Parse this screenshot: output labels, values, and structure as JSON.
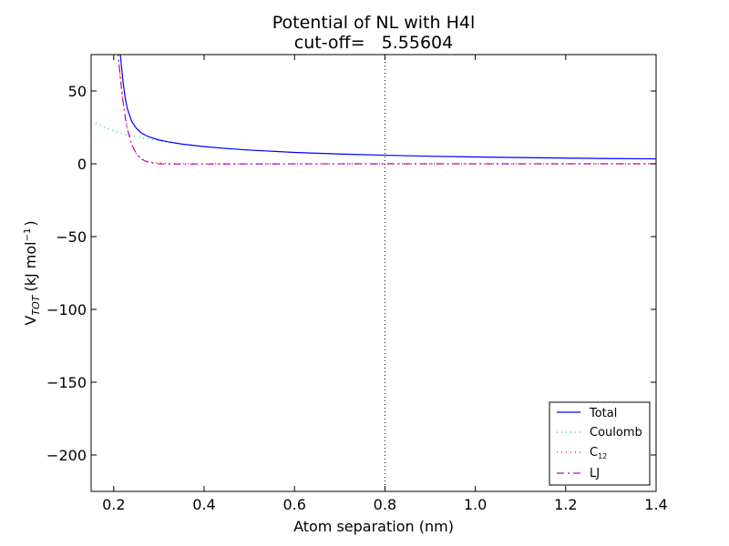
{
  "chart_data": {
    "type": "line",
    "title": "Potential of NL with H4l",
    "subtitle": "cut-off=   5.55604",
    "xlabel": "Atom separation (nm)",
    "ylabel": "V",
    "ylabel_subscript": "TOT",
    "ylabel_units": "(kJ mol",
    "ylabel_units_exp": "−1",
    "ylabel_units_close": ")",
    "xlim": [
      0.15,
      1.4
    ],
    "ylim": [
      -225,
      75
    ],
    "xticks": [
      0.2,
      0.4,
      0.6,
      0.8,
      1.0,
      1.2,
      1.4
    ],
    "xtick_labels": [
      "0.2",
      "0.4",
      "0.6",
      "0.8",
      "1.0",
      "1.2",
      "1.4"
    ],
    "yticks": [
      50,
      0,
      -50,
      -100,
      -150,
      -200
    ],
    "ytick_labels": [
      "50",
      "0",
      "−50",
      "−100",
      "−150",
      "−200"
    ],
    "grid": false,
    "legend_position": "bottom-right",
    "cutoff_line_x": 0.8,
    "series": [
      {
        "name": "Total",
        "color": "#0000ff",
        "style": "solid",
        "x": [
          0.21,
          0.215,
          0.22,
          0.225,
          0.23,
          0.24,
          0.25,
          0.26,
          0.27,
          0.28,
          0.3,
          0.32,
          0.35,
          0.4,
          0.45,
          0.5,
          0.6,
          0.7,
          0.8,
          0.9,
          1.0,
          1.1,
          1.2,
          1.3,
          1.4
        ],
        "y": [
          90,
          74,
          58,
          46,
          38,
          29,
          24.5,
          21.5,
          19.6,
          18.3,
          16.4,
          15.1,
          13.6,
          11.8,
          10.5,
          9.4,
          7.8,
          6.7,
          5.9,
          5.2,
          4.7,
          4.3,
          3.9,
          3.6,
          3.4
        ]
      },
      {
        "name": "Coulomb",
        "color": "#00bfbf",
        "style": "dotted",
        "x": [
          0.16,
          0.18,
          0.2,
          0.22,
          0.25,
          0.28,
          0.3,
          0.35,
          0.4,
          0.5,
          0.6,
          0.7,
          0.8,
          0.9,
          1.0,
          1.1,
          1.2,
          1.3,
          1.4
        ],
        "y": [
          28,
          25,
          22.5,
          20.5,
          18.5,
          16.8,
          15.8,
          13.6,
          11.8,
          9.4,
          7.8,
          6.7,
          5.9,
          5.2,
          4.7,
          4.3,
          3.9,
          3.6,
          3.4
        ]
      },
      {
        "name": "C",
        "name_subscript": "12",
        "color": "#ff0000",
        "style": "dotted",
        "x": [
          0.205,
          0.21,
          0.215,
          0.22,
          0.225,
          0.23,
          0.24,
          0.25,
          0.26,
          0.27,
          0.28,
          0.3,
          0.35,
          0.4,
          0.5,
          0.6,
          0.8,
          1.0,
          1.2,
          1.4
        ],
        "y": [
          90,
          74,
          58,
          44,
          33,
          24,
          13,
          7,
          3.8,
          2.2,
          1.3,
          0.5,
          0.1,
          0.03,
          0.0,
          0.0,
          0.0,
          0.0,
          0.0,
          0.0
        ]
      },
      {
        "name": "LJ",
        "color": "#bf00bf",
        "style": "dashdot",
        "x": [
          0.205,
          0.21,
          0.215,
          0.22,
          0.225,
          0.23,
          0.24,
          0.25,
          0.26,
          0.27,
          0.28,
          0.3,
          0.32,
          0.35,
          0.4,
          0.5,
          0.6,
          0.8,
          1.0,
          1.2,
          1.4
        ],
        "y": [
          90,
          74,
          58,
          44,
          33,
          24,
          13,
          7,
          3.6,
          1.8,
          0.8,
          0.0,
          -0.2,
          -0.2,
          -0.2,
          -0.1,
          -0.05,
          0.0,
          0.0,
          0.0,
          0.0
        ]
      }
    ]
  }
}
